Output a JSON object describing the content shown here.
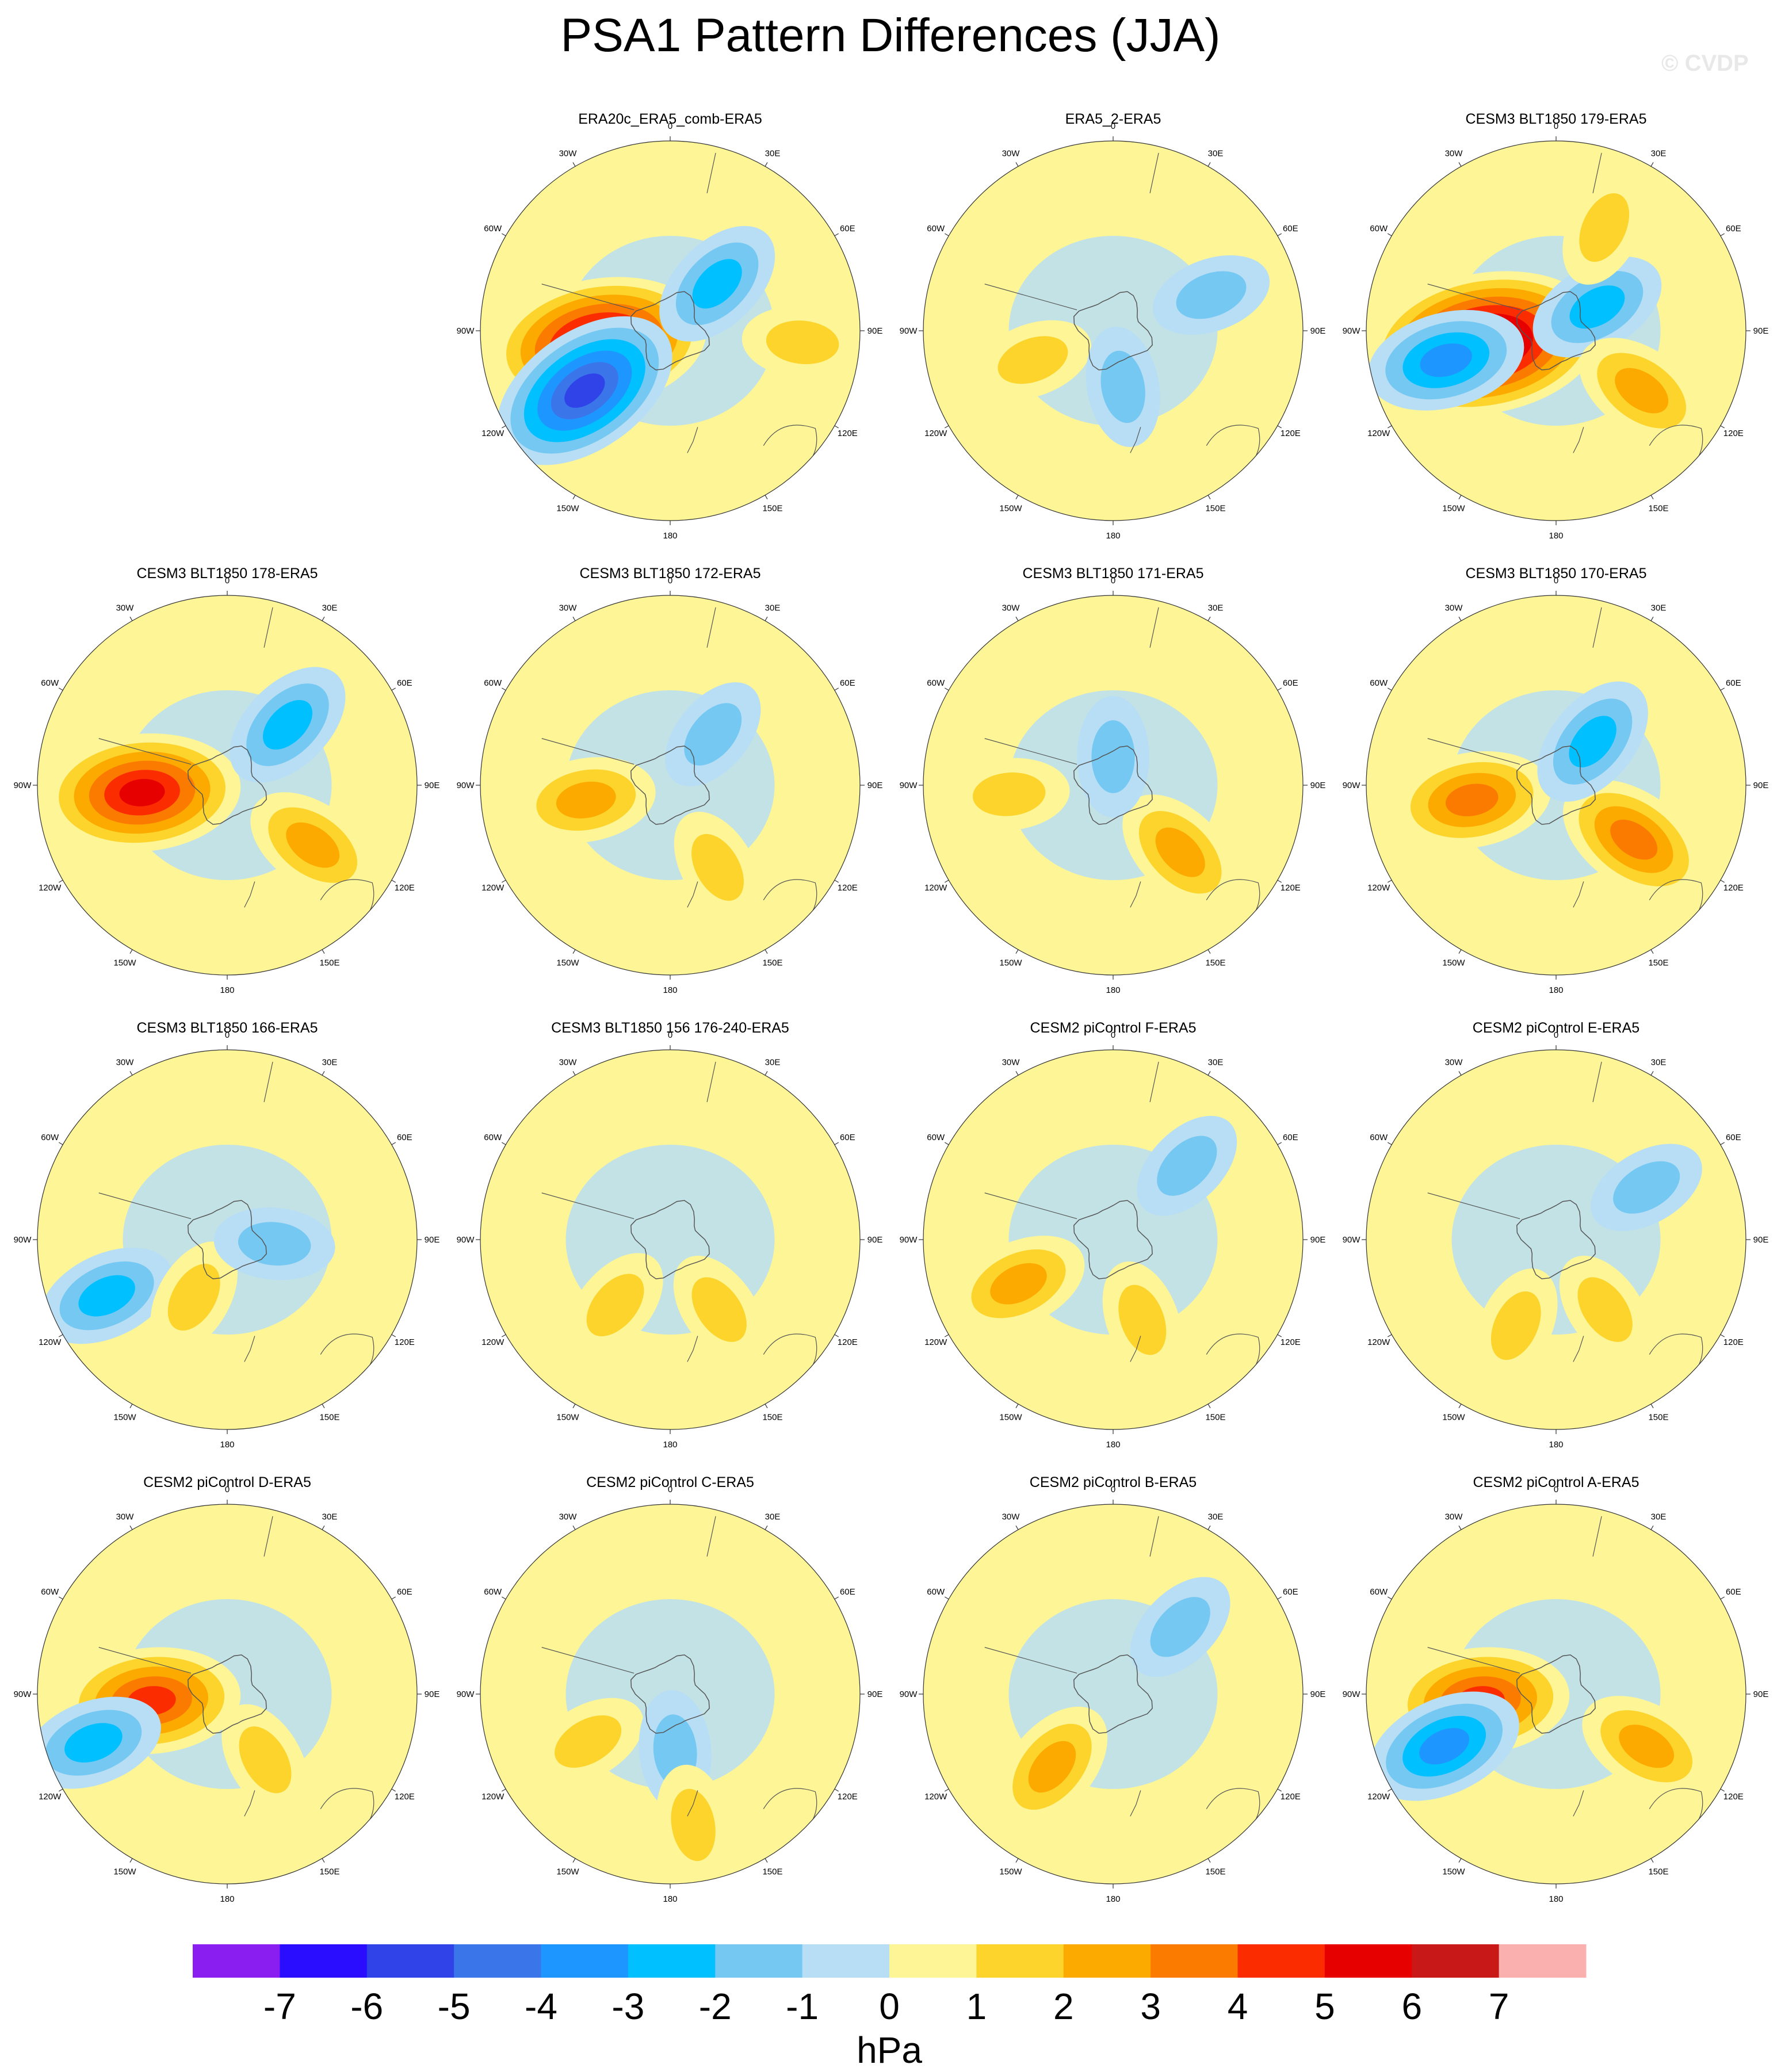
{
  "title": "PSA1 Pattern Differences (JJA)",
  "watermark": "© CVDP",
  "panels": [
    {
      "title": "ERA20c_ERA5_comb-ERA5"
    },
    {
      "title": "ERA5_2-ERA5"
    },
    {
      "title": "CESM3 BLT1850 179-ERA5"
    },
    {
      "title": "CESM3 BLT1850 178-ERA5"
    },
    {
      "title": "CESM3 BLT1850 172-ERA5"
    },
    {
      "title": "CESM3 BLT1850 171-ERA5"
    },
    {
      "title": "CESM3 BLT1850 170-ERA5"
    },
    {
      "title": "CESM3 BLT1850 166-ERA5"
    },
    {
      "title": "CESM3 BLT1850 156 176-240-ERA5"
    },
    {
      "title": "CESM2 piControl F-ERA5"
    },
    {
      "title": "CESM2 piControl E-ERA5"
    },
    {
      "title": "CESM2 piControl D-ERA5"
    },
    {
      "title": "CESM2 piControl C-ERA5"
    },
    {
      "title": "CESM2 piControl B-ERA5"
    },
    {
      "title": "CESM2 piControl A-ERA5"
    }
  ],
  "lon_labels": [
    "0",
    "30E",
    "60E",
    "90E",
    "120E",
    "150E",
    "180",
    "150W",
    "120W",
    "90W",
    "60W",
    "30W"
  ],
  "colorbar": {
    "ticks": [
      "-7",
      "-6",
      "-5",
      "-4",
      "-3",
      "-2",
      "-1",
      "0",
      "1",
      "2",
      "3",
      "4",
      "5",
      "6",
      "7"
    ],
    "unit": "hPa",
    "colors": [
      "#8a1df0",
      "#2a0dff",
      "#2f43e8",
      "#3b75ea",
      "#1e96ff",
      "#00c0ff",
      "#74c8f2",
      "#b7def4",
      "#fdf596",
      "#fcd42c",
      "#fcaa00",
      "#fb7a00",
      "#fb2c00",
      "#e60000",
      "#c81818",
      "#fbb0b0"
    ]
  },
  "chart_data": {
    "type": "heatmap",
    "projection": "south polar stereographic",
    "variable": "PSA1 pattern difference",
    "unit": "hPa",
    "contour_levels": [
      -7,
      -6,
      -5,
      -4,
      -3,
      -2,
      -1,
      0,
      1,
      2,
      3,
      4,
      5,
      6,
      7
    ],
    "panel_features": [
      [
        {
          "lon": -100,
          "r": 0.38,
          "value": 6.5
        },
        {
          "lon": -125,
          "r": 0.55,
          "value": -5.5
        },
        {
          "lon": 45,
          "r": 0.35,
          "value": -2.5
        },
        {
          "lon": 95,
          "r": 0.7,
          "value": 1.5
        }
      ],
      [
        {
          "lon": -110,
          "r": 0.45,
          "value": 1.5
        },
        {
          "lon": 170,
          "r": 0.3,
          "value": -1.5
        },
        {
          "lon": 70,
          "r": 0.55,
          "value": -1.5
        }
      ],
      [
        {
          "lon": -100,
          "r": 0.38,
          "value": 7.5
        },
        {
          "lon": -105,
          "r": 0.6,
          "value": -3.5
        },
        {
          "lon": 60,
          "r": 0.25,
          "value": -2.5
        },
        {
          "lon": 125,
          "r": 0.55,
          "value": 2.5
        },
        {
          "lon": 25,
          "r": 0.6,
          "value": 1.5
        }
      ],
      [
        {
          "lon": -95,
          "r": 0.45,
          "value": 5.5
        },
        {
          "lon": 45,
          "r": 0.45,
          "value": -2.5
        },
        {
          "lon": 125,
          "r": 0.55,
          "value": 2.5
        }
      ],
      [
        {
          "lon": -100,
          "r": 0.45,
          "value": 2.5
        },
        {
          "lon": 150,
          "r": 0.5,
          "value": 1.5
        },
        {
          "lon": 40,
          "r": 0.35,
          "value": -1.5
        }
      ],
      [
        {
          "lon": 135,
          "r": 0.5,
          "value": 2.5
        },
        {
          "lon": -95,
          "r": 0.55,
          "value": 1.5
        },
        {
          "lon": 0,
          "r": 0.15,
          "value": -1.5
        }
      ],
      [
        {
          "lon": -100,
          "r": 0.45,
          "value": 3.5
        },
        {
          "lon": 125,
          "r": 0.5,
          "value": 3.5
        },
        {
          "lon": 40,
          "r": 0.3,
          "value": -2.5
        }
      ],
      [
        {
          "lon": -115,
          "r": 0.7,
          "value": -2.5
        },
        {
          "lon": -150,
          "r": 0.35,
          "value": 1.5
        },
        {
          "lon": 95,
          "r": 0.25,
          "value": -1.5
        }
      ],
      [
        {
          "lon": -140,
          "r": 0.45,
          "value": 1.5
        },
        {
          "lon": 145,
          "r": 0.45,
          "value": 1.5
        }
      ],
      [
        {
          "lon": -115,
          "r": 0.55,
          "value": 2.5
        },
        {
          "lon": 160,
          "r": 0.45,
          "value": 1.5
        },
        {
          "lon": 45,
          "r": 0.55,
          "value": -1.5
        }
      ],
      [
        {
          "lon": 145,
          "r": 0.45,
          "value": 1.5
        },
        {
          "lon": -155,
          "r": 0.5,
          "value": 1.5
        },
        {
          "lon": 60,
          "r": 0.55,
          "value": -1.5
        }
      ],
      [
        {
          "lon": -95,
          "r": 0.4,
          "value": 4.5
        },
        {
          "lon": -110,
          "r": 0.75,
          "value": -2.5
        },
        {
          "lon": 150,
          "r": 0.4,
          "value": 1.5
        }
      ],
      [
        {
          "lon": -120,
          "r": 0.5,
          "value": 1.5
        },
        {
          "lon": 175,
          "r": 0.3,
          "value": -1.5
        },
        {
          "lon": 170,
          "r": 0.7,
          "value": 1.5
        }
      ],
      [
        {
          "lon": -140,
          "r": 0.5,
          "value": 2.5
        },
        {
          "lon": 45,
          "r": 0.5,
          "value": -1.5
        }
      ],
      [
        {
          "lon": -95,
          "r": 0.4,
          "value": 4.5
        },
        {
          "lon": -115,
          "r": 0.65,
          "value": -3.5
        },
        {
          "lon": 120,
          "r": 0.55,
          "value": 2.5
        }
      ]
    ]
  }
}
